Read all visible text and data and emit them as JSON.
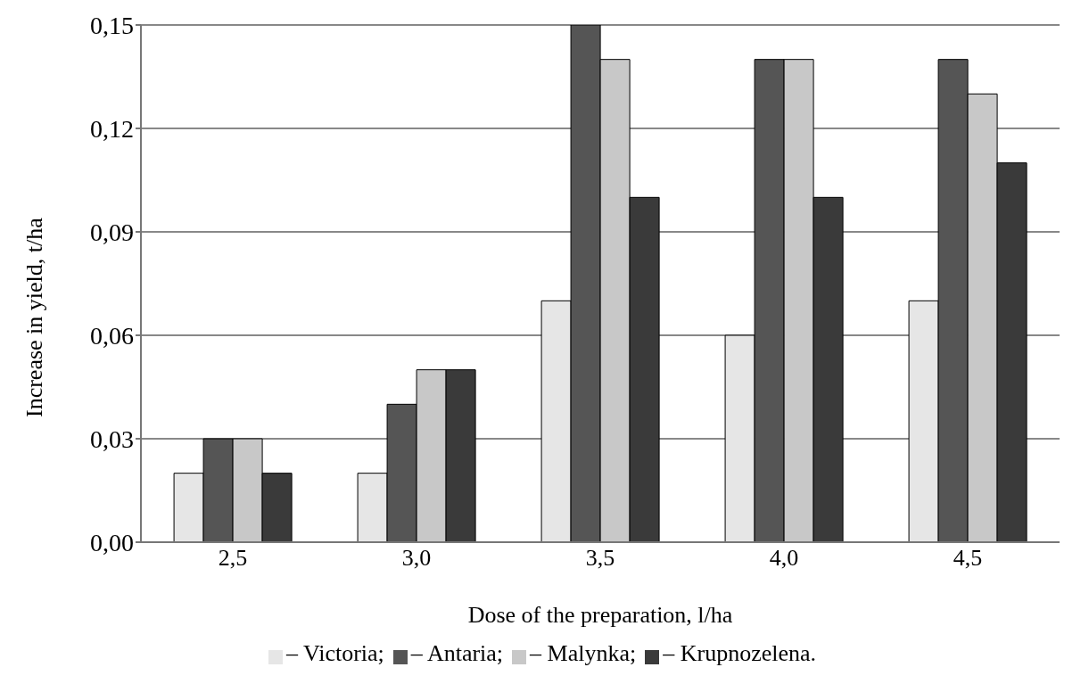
{
  "chart_data": {
    "type": "bar",
    "xlabel": "Dose of the preparation, l/ha",
    "ylabel": "Increase in yield, t/ha",
    "categories": [
      "2,5",
      "3,0",
      "3,5",
      "4,0",
      "4,5"
    ],
    "series": [
      {
        "name": "– Victoria;",
        "color": "#e6e6e6",
        "values": [
          0.02,
          0.02,
          0.07,
          0.06,
          0.07
        ]
      },
      {
        "name": "– Antaria;",
        "color": "#555555",
        "values": [
          0.03,
          0.04,
          0.15,
          0.14,
          0.14
        ]
      },
      {
        "name": "– Malynka;",
        "color": "#c8c8c8",
        "values": [
          0.03,
          0.05,
          0.14,
          0.14,
          0.13
        ]
      },
      {
        "name": "– Krupnozelena.",
        "color": "#3a3a3a",
        "values": [
          0.02,
          0.05,
          0.1,
          0.1,
          0.11
        ]
      }
    ],
    "ylim": [
      0,
      0.15
    ],
    "yticks": [
      {
        "value": 0,
        "label": "0,00"
      },
      {
        "value": 0.03,
        "label": "0,03"
      },
      {
        "value": 0.06,
        "label": "0,06"
      },
      {
        "value": 0.09,
        "label": "0,09"
      },
      {
        "value": 0.12,
        "label": "0,12"
      },
      {
        "value": 0.15,
        "label": "0,15"
      }
    ],
    "grid": "y",
    "legend": "bottom"
  }
}
